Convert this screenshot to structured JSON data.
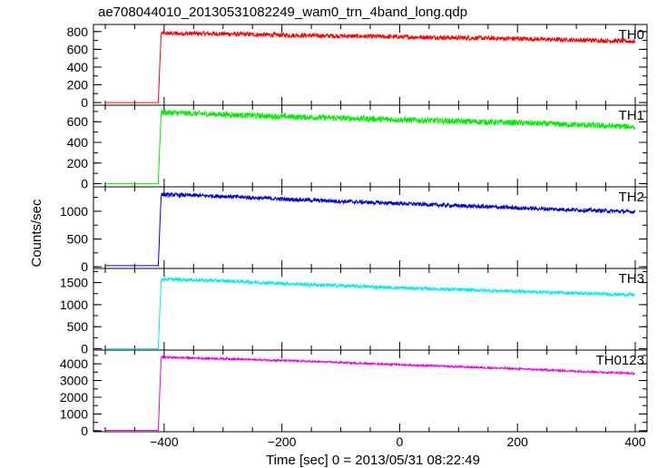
{
  "title": "ae708044010_20130531082249_wam0_trn_4band_long.qdp",
  "chart_data": {
    "type": "line",
    "title": "ae708044010_20130531082249_wam0_trn_4band_long.qdp",
    "xlabel": "Time [sec] 0 = 2013/05/31 08:22:49",
    "ylabel": "Counts/sec",
    "xlim": [
      -520,
      420
    ],
    "x_ticks": [
      -400,
      -200,
      0,
      200,
      400
    ],
    "x_range_data": [
      -500,
      400
    ],
    "onset_time": -408,
    "series": [
      {
        "name": "TH0",
        "color": "#ff0000",
        "ylim": [
          -30,
          880
        ],
        "y_ticks": [
          0,
          200,
          400,
          600,
          800
        ],
        "pre_level": 0,
        "key_points": [
          [
            -500,
            0
          ],
          [
            -410,
            0
          ],
          [
            -408,
            330
          ],
          [
            -405,
            780
          ],
          [
            -300,
            775
          ],
          [
            -200,
            760
          ],
          [
            0,
            740
          ],
          [
            200,
            720
          ],
          [
            400,
            690
          ]
        ],
        "noise": 25
      },
      {
        "name": "TH1",
        "color": "#00ee00",
        "ylim": [
          -30,
          760
        ],
        "y_ticks": [
          0,
          200,
          400,
          600
        ],
        "pre_level": 0,
        "key_points": [
          [
            -500,
            0
          ],
          [
            -410,
            0
          ],
          [
            -408,
            300
          ],
          [
            -405,
            690
          ],
          [
            -300,
            670
          ],
          [
            -200,
            650
          ],
          [
            0,
            620
          ],
          [
            200,
            590
          ],
          [
            400,
            550
          ]
        ],
        "noise": 28
      },
      {
        "name": "TH2",
        "color": "#0000cc",
        "ylim": [
          -30,
          1440
        ],
        "y_ticks": [
          0,
          500,
          1000
        ],
        "pre_level": 20,
        "key_points": [
          [
            -500,
            20
          ],
          [
            -410,
            20
          ],
          [
            -408,
            550
          ],
          [
            -405,
            1300
          ],
          [
            -300,
            1270
          ],
          [
            -200,
            1220
          ],
          [
            0,
            1140
          ],
          [
            200,
            1060
          ],
          [
            400,
            990
          ]
        ],
        "noise": 35
      },
      {
        "name": "TH3",
        "color": "#00eeee",
        "ylim": [
          -30,
          1820
        ],
        "y_ticks": [
          0,
          500,
          1000,
          1500
        ],
        "pre_level": 0,
        "key_points": [
          [
            -500,
            0
          ],
          [
            -410,
            0
          ],
          [
            -408,
            650
          ],
          [
            -405,
            1580
          ],
          [
            -300,
            1540
          ],
          [
            -200,
            1480
          ],
          [
            0,
            1380
          ],
          [
            200,
            1300
          ],
          [
            400,
            1220
          ]
        ],
        "noise": 40
      },
      {
        "name": "TH0123",
        "color": "#ee00ee",
        "ylim": [
          -60,
          4820
        ],
        "y_ticks": [
          0,
          1000,
          2000,
          3000,
          4000
        ],
        "pre_level": 20,
        "key_points": [
          [
            -500,
            20
          ],
          [
            -410,
            20
          ],
          [
            -408,
            1800
          ],
          [
            -405,
            4400
          ],
          [
            -300,
            4300
          ],
          [
            -200,
            4200
          ],
          [
            0,
            3950
          ],
          [
            200,
            3700
          ],
          [
            400,
            3420
          ]
        ],
        "noise": 55
      }
    ]
  }
}
